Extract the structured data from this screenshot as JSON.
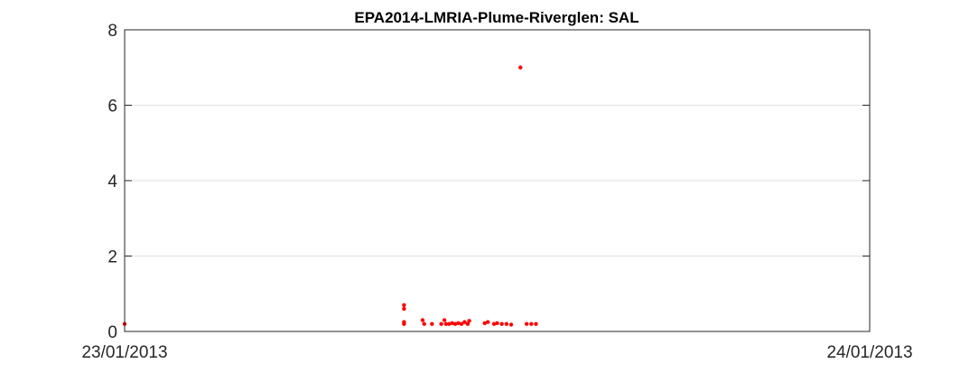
{
  "chart_data": {
    "type": "scatter",
    "title": "EPA2014-LMRIA-Plume-Riverglen: SAL",
    "xlabel": "",
    "ylabel": "",
    "x_axis": {
      "type": "time",
      "range_hours": [
        0,
        24
      ],
      "ticks": [
        {
          "hour": 0,
          "label": "23/01/2013"
        },
        {
          "hour": 24,
          "label": "24/01/2013"
        }
      ]
    },
    "y_axis": {
      "range": [
        0,
        8
      ],
      "ticks": [
        0,
        2,
        4,
        6,
        8
      ]
    },
    "grid": "horizontal",
    "marker_color": "#ff0000",
    "points": [
      {
        "h": 0.0,
        "v": 0.2
      },
      {
        "h": 9.0,
        "v": 0.7
      },
      {
        "h": 9.0,
        "v": 0.6
      },
      {
        "h": 9.0,
        "v": 0.25
      },
      {
        "h": 9.0,
        "v": 0.2
      },
      {
        "h": 9.6,
        "v": 0.3
      },
      {
        "h": 9.65,
        "v": 0.2
      },
      {
        "h": 9.9,
        "v": 0.2
      },
      {
        "h": 10.2,
        "v": 0.2
      },
      {
        "h": 10.3,
        "v": 0.3
      },
      {
        "h": 10.35,
        "v": 0.2
      },
      {
        "h": 10.45,
        "v": 0.2
      },
      {
        "h": 10.55,
        "v": 0.22
      },
      {
        "h": 10.65,
        "v": 0.2
      },
      {
        "h": 10.75,
        "v": 0.22
      },
      {
        "h": 10.85,
        "v": 0.2
      },
      {
        "h": 10.95,
        "v": 0.25
      },
      {
        "h": 11.05,
        "v": 0.2
      },
      {
        "h": 11.1,
        "v": 0.28
      },
      {
        "h": 11.6,
        "v": 0.22
      },
      {
        "h": 11.7,
        "v": 0.25
      },
      {
        "h": 11.9,
        "v": 0.2
      },
      {
        "h": 12.0,
        "v": 0.22
      },
      {
        "h": 12.15,
        "v": 0.2
      },
      {
        "h": 12.3,
        "v": 0.2
      },
      {
        "h": 12.45,
        "v": 0.18
      },
      {
        "h": 12.75,
        "v": 7.0
      },
      {
        "h": 12.95,
        "v": 0.2
      },
      {
        "h": 13.1,
        "v": 0.2
      },
      {
        "h": 13.25,
        "v": 0.2
      }
    ]
  }
}
